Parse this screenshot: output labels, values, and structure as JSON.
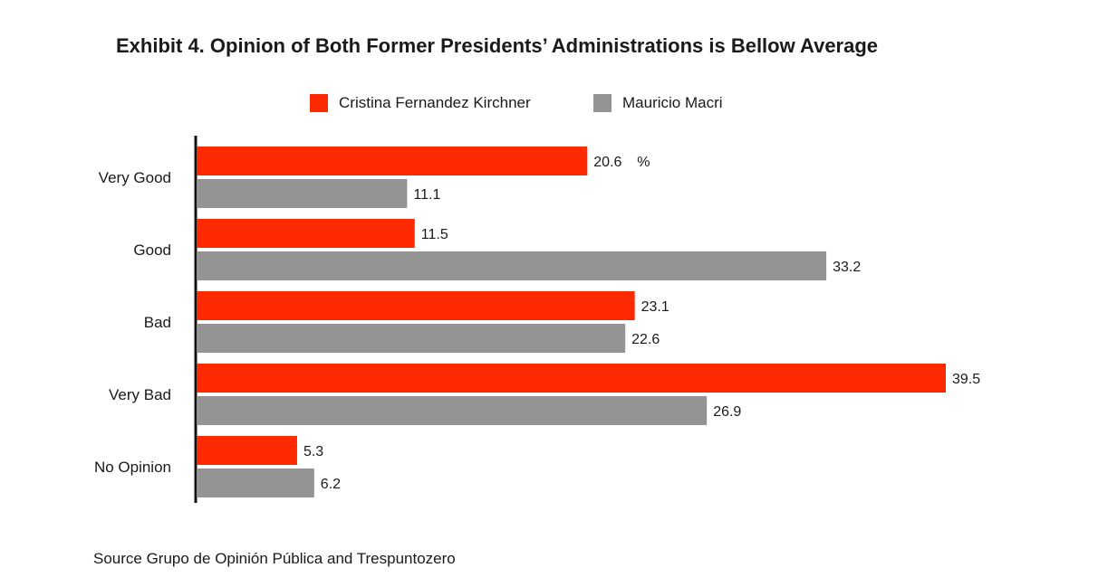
{
  "title": "Exhibit 4. Opinion of Both Former Presidents’ Administrations is Bellow Average",
  "source": "Source Grupo de Opinión Pública and Trespuntozero",
  "unit_suffix": "%",
  "colors": {
    "cfk": "#ff2a00",
    "macri": "#949494",
    "axis": "#111111",
    "text": "#1a1a1a"
  },
  "chart_data": {
    "type": "bar",
    "orientation": "horizontal",
    "title": "Exhibit 4. Opinion of Both Former Presidents’ Administrations is Bellow Average",
    "categories": [
      "Very Good",
      "Good",
      "Bad",
      "Very Bad",
      "No Opinion"
    ],
    "series": [
      {
        "name": "Cristina Fernandez Kirchner",
        "values": [
          20.6,
          11.5,
          23.1,
          39.5,
          5.3
        ],
        "color": "#ff2a00"
      },
      {
        "name": "Mauricio Macri",
        "values": [
          11.1,
          33.2,
          22.6,
          26.9,
          6.2
        ],
        "color": "#949494"
      }
    ],
    "xlabel": "",
    "ylabel": "",
    "xlim": [
      0,
      40
    ],
    "grid": false,
    "legend_position": "top-center"
  }
}
